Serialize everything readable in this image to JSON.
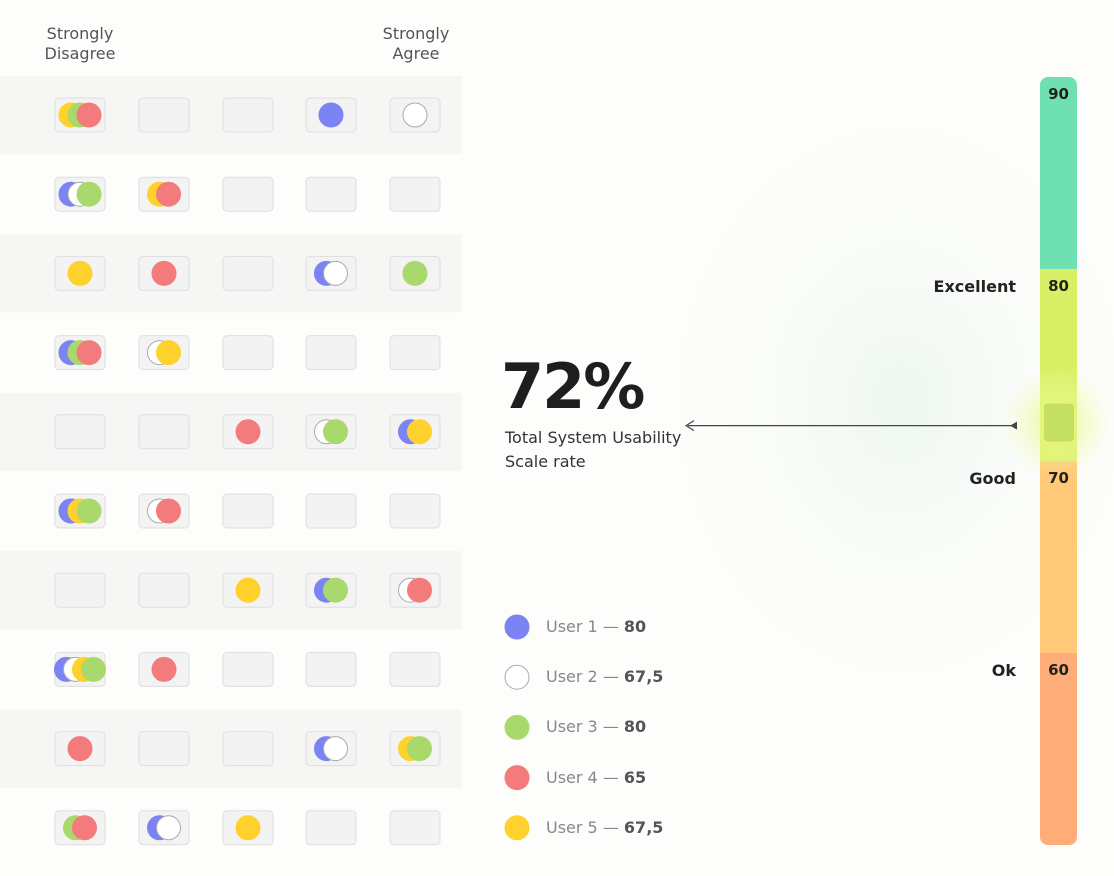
{
  "header": {
    "left": "Strongly Disagree",
    "right": "Strongly Agree"
  },
  "grid": {
    "rows": [
      [
        [
          5,
          3,
          4
        ],
        [],
        [],
        [
          1
        ],
        [
          2
        ]
      ],
      [
        [
          1,
          2,
          3
        ],
        [
          5,
          4
        ],
        [],
        [],
        []
      ],
      [
        [
          5
        ],
        [
          4
        ],
        [],
        [
          1,
          2
        ],
        [
          3
        ]
      ],
      [
        [
          1,
          3,
          4
        ],
        [
          2,
          5
        ],
        [],
        [],
        []
      ],
      [
        [],
        [],
        [
          4
        ],
        [
          2,
          3
        ],
        [
          1,
          5
        ]
      ],
      [
        [
          1,
          5,
          3
        ],
        [
          2,
          4
        ],
        [],
        [],
        []
      ],
      [
        [],
        [],
        [
          5
        ],
        [
          1,
          3
        ],
        [
          2,
          4
        ]
      ],
      [
        [
          1,
          2,
          5,
          3
        ],
        [
          4
        ],
        [],
        [],
        []
      ],
      [
        [
          4
        ],
        [],
        [],
        [
          1,
          2
        ],
        [
          5,
          3
        ]
      ],
      [
        [
          3,
          4
        ],
        [
          1,
          2
        ],
        [
          5
        ],
        [],
        []
      ]
    ]
  },
  "score": {
    "value": 72,
    "label": "72%",
    "caption": "Total System Usability Scale rate"
  },
  "legend": {
    "separator": "—",
    "users": [
      {
        "number": 1,
        "name": "User 1",
        "score": 80,
        "color": "#7c83f2"
      },
      {
        "number": 2,
        "name": "User 2",
        "score": {
          "value": 67.5,
          "label": "67,5"
        },
        "color": "#ffffff"
      },
      {
        "number": 3,
        "name": "User 3",
        "score": 80,
        "color": "#a9d86c"
      },
      {
        "number": 4,
        "name": "User 4",
        "score": 65,
        "color": "#f37b7b"
      },
      {
        "number": 5,
        "name": "User 5",
        "score": {
          "value": 67.5,
          "label": "67,5"
        },
        "color": "#ffd12c"
      }
    ]
  },
  "scale": {
    "range": [
      50,
      90
    ],
    "bands": [
      {
        "value": 90,
        "color": "#6fe0b2"
      },
      {
        "value": 80,
        "label": "Excellent",
        "color": "#d9f066"
      },
      {
        "value": 70,
        "label": "Good",
        "color": "#ffc977"
      },
      {
        "value": 60,
        "label": "Ok",
        "color": "#ffad78"
      }
    ]
  }
}
